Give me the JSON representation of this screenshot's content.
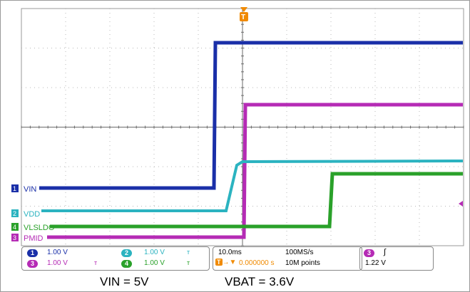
{
  "colors": {
    "ch1": "#1a2fa8",
    "ch2": "#2bb3c0",
    "ch3": "#b52bb5",
    "ch4": "#2aa12a",
    "trigger": "#f08a00",
    "grid": "#9a9a9a"
  },
  "waveform_labels": {
    "ch1": "VIN",
    "ch2": "VDD",
    "ch3": "PMID",
    "ch4": "VLSLDO"
  },
  "ref_markers": {
    "ch1": "1",
    "ch2": "2",
    "ch3": "3",
    "ch4": "4",
    "trigger": "T"
  },
  "status": {
    "ch1_scale": "1.00 V",
    "ch2_scale": "1.00 V",
    "ch3_scale": "1.00 V",
    "ch4_scale": "1.00 V",
    "bw_icon": "bandwidth-limit-icon",
    "timebase": "10.0ms",
    "sample_rate": "100MS/s",
    "trigger_delay": "0.000000 s",
    "record_length": "10M points",
    "trigger_channel": "3",
    "trigger_slope": "∫",
    "trigger_level": "1.22 V"
  },
  "captions": {
    "left": "VIN = 5V",
    "right": "VBAT = 3.6V"
  }
}
